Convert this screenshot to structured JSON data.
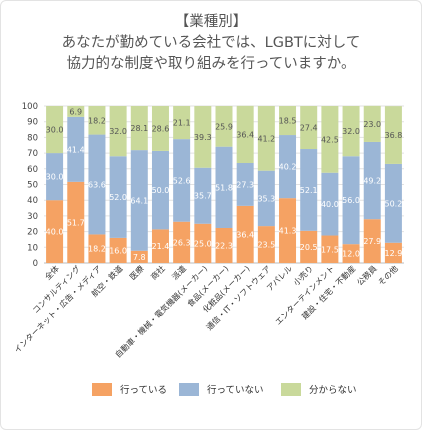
{
  "chart_data": {
    "type": "bar",
    "stacked": true,
    "title": [
      "【業種別】",
      "あなたが勤めている会社では、LGBTに対して",
      "協力的な制度や取り組みを行っていますか。"
    ],
    "ylim": [
      0,
      100
    ],
    "yticks": [
      0,
      10,
      20,
      30,
      40,
      50,
      60,
      70,
      80,
      90,
      100
    ],
    "grid": true,
    "legend_position": "bottom",
    "categories": [
      "全体",
      "コンサルティング",
      "インターネット・広告・メディア",
      "航空・鉄道",
      "医療",
      "商社",
      "派遣",
      "自動車・機械・電気機器(メーカー)",
      "食品(メーカー)",
      "化粧品(メーカー)",
      "通信・IT・ソフトウェア",
      "アパレル",
      "小売り",
      "エンターテインメント",
      "建設・住宅・不動産",
      "公務員",
      "その他"
    ],
    "series": [
      {
        "name": "行っている",
        "color": "#f5a263",
        "values": [
          40.0,
          51.7,
          18.2,
          16.0,
          7.8,
          21.4,
          26.3,
          25.0,
          22.3,
          36.4,
          23.5,
          41.3,
          20.5,
          17.5,
          12.0,
          27.9,
          12.9
        ],
        "labels": [
          "40.0",
          "51.7",
          "18.2",
          "16.0",
          "7.8",
          "21.4",
          "26.3",
          "25.0",
          "22.3",
          "36.4",
          "23.5",
          "41.3",
          "20.5",
          "17.5",
          "12.0",
          "27.9",
          "12.9"
        ]
      },
      {
        "name": "行っていない",
        "color": "#9bb6d6",
        "values": [
          30.0,
          41.4,
          63.6,
          52.0,
          64.1,
          50.0,
          52.6,
          35.7,
          51.8,
          27.3,
          35.3,
          40.2,
          52.1,
          40.0,
          56.0,
          49.2,
          50.2
        ],
        "labels": [
          "30.0",
          "41.4",
          "63.6",
          "52.0",
          "64.1",
          "50.0",
          "52.6",
          "35.7",
          "51.8",
          "27.3",
          "35.3",
          "40.2",
          "52.1",
          "40.0",
          "56.0",
          "49.2",
          "50.2"
        ]
      },
      {
        "name": "分からない",
        "color": "#c9d99b",
        "values": [
          30.0,
          6.9,
          18.2,
          32.0,
          28.1,
          28.6,
          21.1,
          39.3,
          25.9,
          36.4,
          41.2,
          18.5,
          27.4,
          42.5,
          32.0,
          23.0,
          36.8
        ],
        "labels": [
          "30.0",
          "6.9",
          "18.2",
          "32.0",
          "28.1",
          "28.6",
          "21.1",
          "39.3",
          "25.9",
          "36.4",
          "41.2",
          "18.5",
          "27.4",
          "42.5",
          "32.0",
          "23.0",
          "36.8"
        ]
      }
    ]
  }
}
